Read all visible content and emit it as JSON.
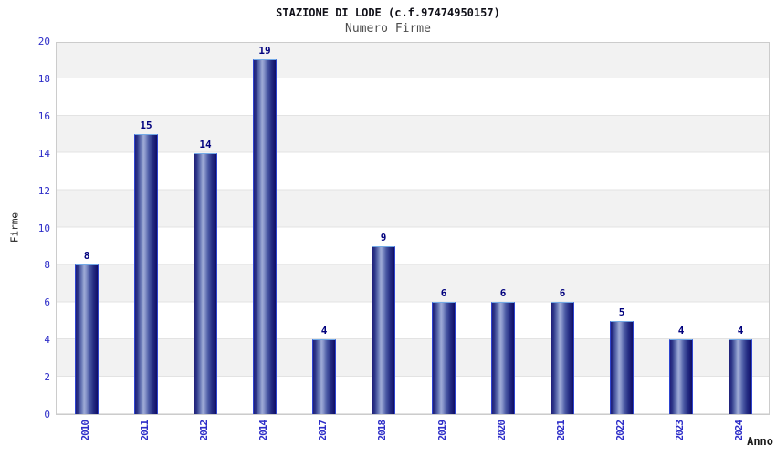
{
  "header": {
    "title": "STAZIONE DI LODE (c.f.97474950157)",
    "subtitle": "Numero Firme"
  },
  "chart_data": {
    "type": "bar",
    "title": "STAZIONE DI LODE (c.f.97474950157)",
    "subtitle": "Numero Firme",
    "categories": [
      "2010",
      "2011",
      "2012",
      "2014",
      "2017",
      "2018",
      "2019",
      "2020",
      "2021",
      "2022",
      "2023",
      "2024"
    ],
    "values": [
      8,
      15,
      14,
      19,
      4,
      9,
      6,
      6,
      6,
      5,
      4,
      4
    ],
    "xlabel": "Anno",
    "ylabel": "Firme",
    "ylim": [
      0,
      20
    ],
    "ytick_step": 2,
    "yticks": [
      0,
      2,
      4,
      6,
      8,
      10,
      12,
      14,
      16,
      18,
      20
    ],
    "grid": "horizontal-alternating-bands",
    "legend": "none",
    "data_labels": "above-bars"
  },
  "colors": {
    "bar_fill_edge": "#20207a",
    "bar_fill_highlight": "#9fabd6",
    "bar_border": "#2e44cf",
    "bar_border_top": "#74aae6",
    "band_gray": "#f2f2f2",
    "band_white": "#ffffff",
    "gridline": "#e3e3e3",
    "plot_border": "#cccccc",
    "tick_label_blue": "#2d2dc8",
    "value_label_navy": "#00007d",
    "title_color": "#101018",
    "subtitle_color": "#4d4d4d",
    "axis_title_color": "#1a1a1a"
  }
}
